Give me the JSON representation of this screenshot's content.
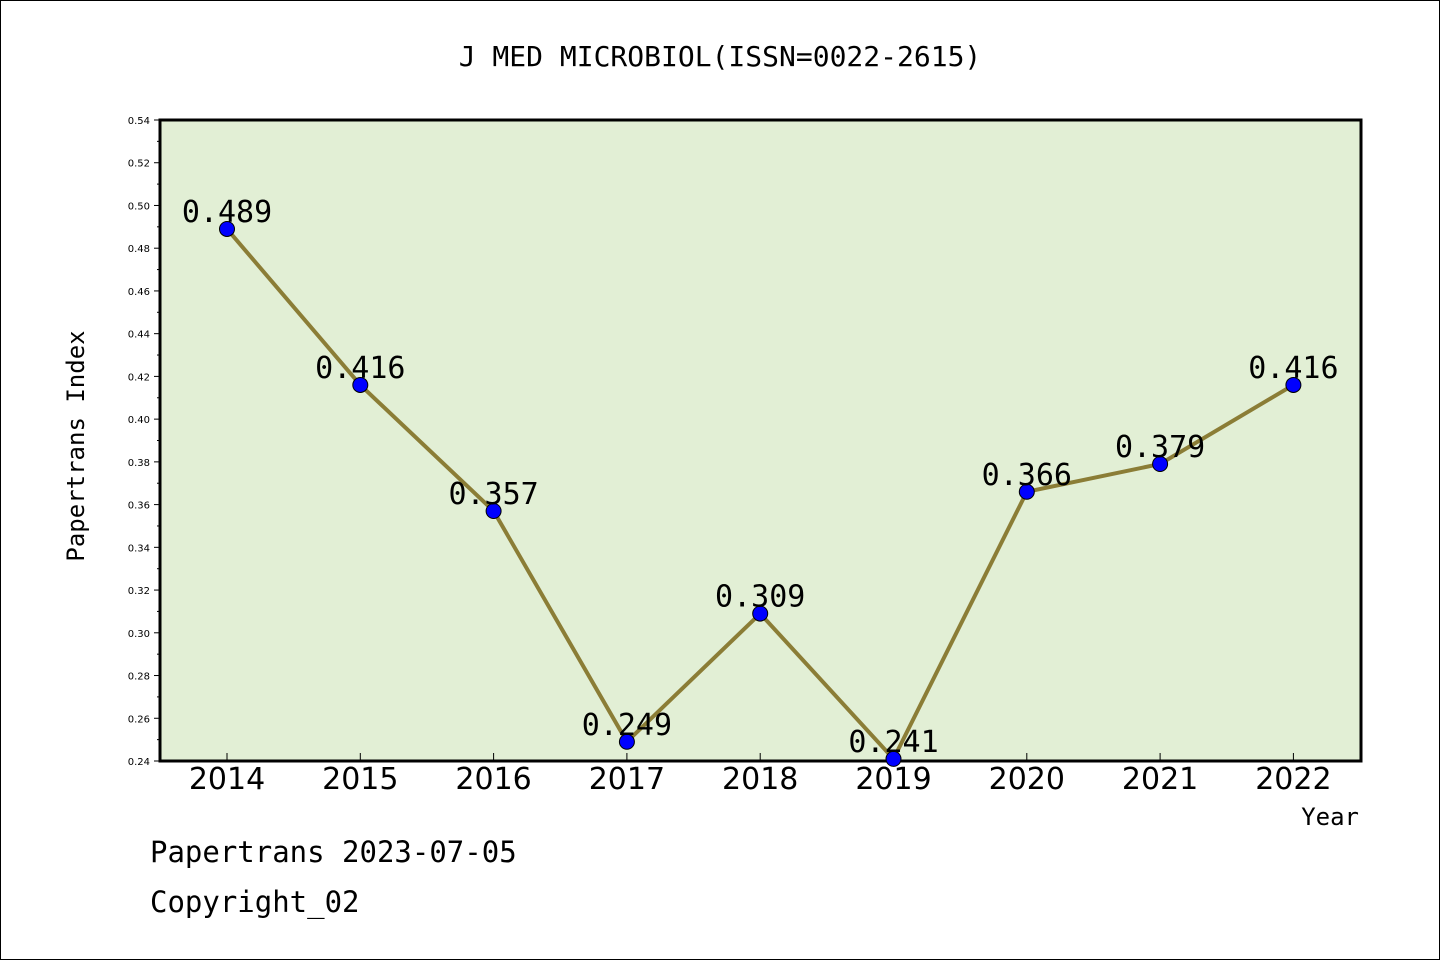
{
  "chart_data": {
    "type": "line",
    "title": "J MED MICROBIOL(ISSN=0022-2615)",
    "xlabel": "Year",
    "ylabel": "Papertrans Index",
    "categories": [
      "2014",
      "2015",
      "2016",
      "2017",
      "2018",
      "2019",
      "2020",
      "2021",
      "2022"
    ],
    "values": [
      0.489,
      0.416,
      0.357,
      0.249,
      0.309,
      0.241,
      0.366,
      0.379,
      0.416
    ],
    "data_labels": [
      "0.489",
      "0.416",
      "0.357",
      "0.249",
      "0.309",
      "0.241",
      "0.366",
      "0.379",
      "0.416"
    ],
    "ylim": [
      0.24,
      0.54
    ],
    "yticks": [
      "0.24",
      "0.26",
      "0.28",
      "0.30",
      "0.32",
      "0.34",
      "0.36",
      "0.38",
      "0.40",
      "0.42",
      "0.44",
      "0.46",
      "0.48",
      "0.50",
      "0.52",
      "0.54"
    ],
    "grid": false,
    "colors": {
      "plot_background": "#e2efd5",
      "line": "#8b7d36",
      "marker": "#0000ff"
    }
  },
  "footer": {
    "line1": "Papertrans 2023-07-05",
    "line2": "Copyright_02"
  }
}
